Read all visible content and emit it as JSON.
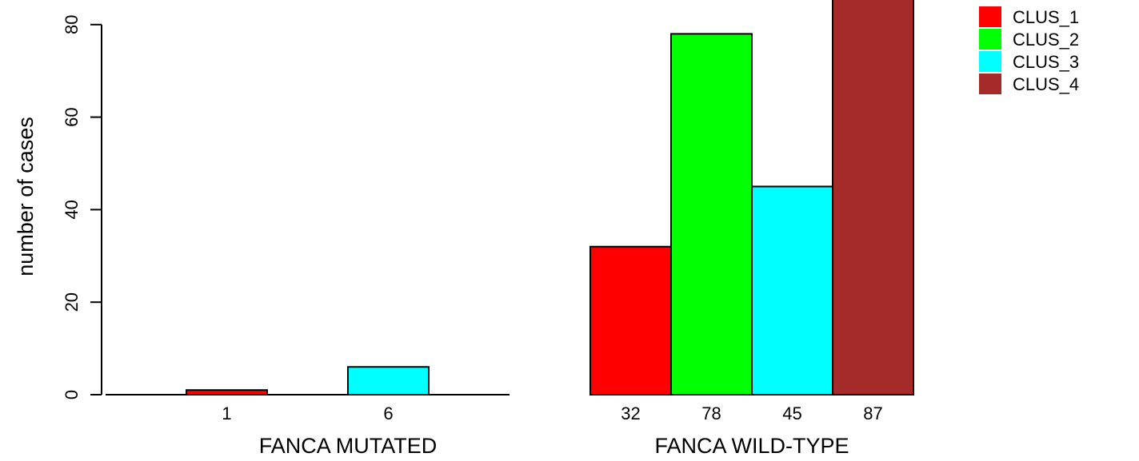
{
  "chart_data": {
    "type": "bar",
    "ylabel": "number of cases",
    "ylim": [
      0,
      87
    ],
    "yticks": [
      0,
      20,
      40,
      60,
      80
    ],
    "grid": false,
    "legend_position": "top-right",
    "series": [
      {
        "name": "CLUS_1",
        "color": "#ff0000"
      },
      {
        "name": "CLUS_2",
        "color": "#00ff00"
      },
      {
        "name": "CLUS_3",
        "color": "#00ffff"
      },
      {
        "name": "CLUS_4",
        "color": "#a52a2a"
      }
    ],
    "groups": [
      {
        "label": "FANCA MUTATED",
        "bars": [
          {
            "series": "CLUS_1",
            "value": 1,
            "label": "1"
          },
          {
            "series": "CLUS_2",
            "value": 0,
            "label": ""
          },
          {
            "series": "CLUS_3",
            "value": 6,
            "label": "6"
          },
          {
            "series": "CLUS_4",
            "value": 0,
            "label": ""
          }
        ]
      },
      {
        "label": "FANCA WILD-TYPE",
        "bars": [
          {
            "series": "CLUS_1",
            "value": 32,
            "label": "32"
          },
          {
            "series": "CLUS_2",
            "value": 78,
            "label": "78"
          },
          {
            "series": "CLUS_3",
            "value": 45,
            "label": "45"
          },
          {
            "series": "CLUS_4",
            "value": 87,
            "label": "87"
          }
        ]
      }
    ]
  }
}
